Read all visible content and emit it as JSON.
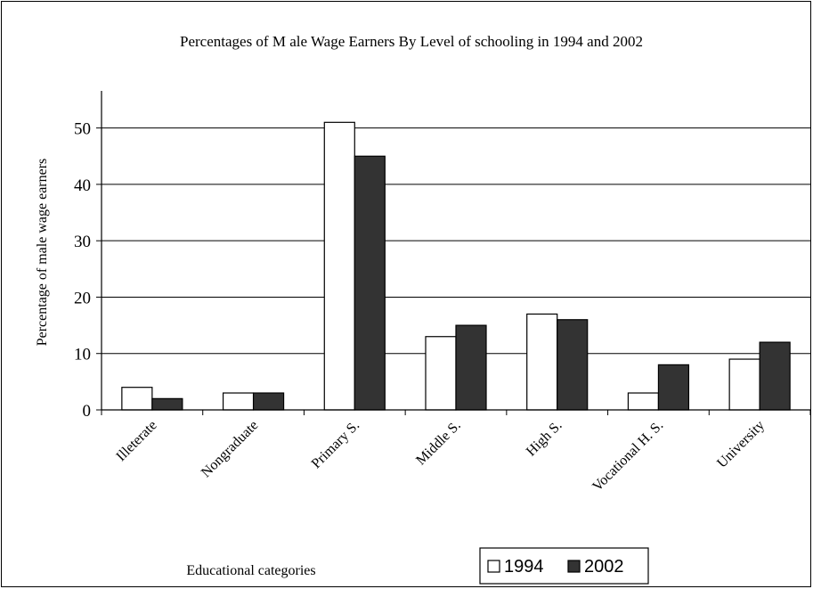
{
  "chart_data": {
    "type": "bar",
    "title": "Percentages of M ale Wage Earners By Level of schooling in 1994 and 2002",
    "xlabel": "Educational categories",
    "ylabel": "Percentage of male wage earners",
    "ylim": [
      0,
      55
    ],
    "yticks": [
      0,
      10,
      20,
      30,
      40,
      50
    ],
    "grid": true,
    "legend_position": "bottom-right",
    "categories": [
      "Illeterate",
      "Nongraduate",
      "Primary S.",
      "Middle S.",
      "High S.",
      "Vocational H. S.",
      "University"
    ],
    "series": [
      {
        "name": "1994",
        "color": "#ffffff",
        "values": [
          4,
          3,
          51,
          13,
          17,
          3,
          9
        ]
      },
      {
        "name": "2002",
        "color": "#333333",
        "values": [
          2,
          3,
          45,
          15,
          16,
          8,
          12
        ]
      }
    ]
  }
}
